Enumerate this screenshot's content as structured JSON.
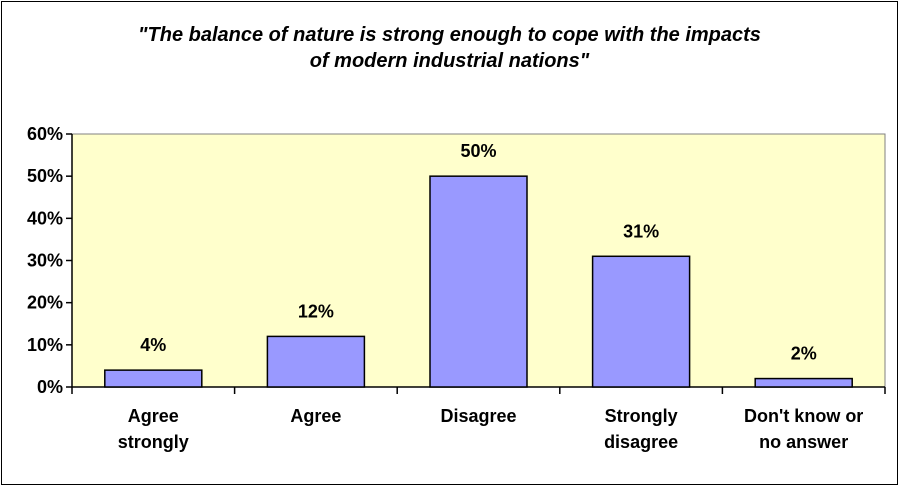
{
  "chart_data": {
    "type": "bar",
    "title_lines": [
      "\"The balance of nature is strong enough to cope with the impacts",
      "of modern industrial nations\""
    ],
    "categories": [
      [
        "Agree",
        "strongly"
      ],
      [
        "Agree"
      ],
      [
        "Disagree"
      ],
      [
        "Strongly",
        "disagree"
      ],
      [
        "Don't know or",
        "no answer"
      ]
    ],
    "values": [
      4,
      12,
      50,
      31,
      2
    ],
    "data_labels": [
      "4%",
      "12%",
      "50%",
      "31%",
      "2%"
    ],
    "y_ticks": [
      "0%",
      "10%",
      "20%",
      "30%",
      "40%",
      "50%",
      "60%"
    ],
    "ylim": [
      0,
      60
    ],
    "colors": {
      "plot_background": "#FFFFCC",
      "bar_fill": "#9999FF",
      "bar_stroke": "#000000",
      "axis": "#000000"
    },
    "grid": false
  }
}
